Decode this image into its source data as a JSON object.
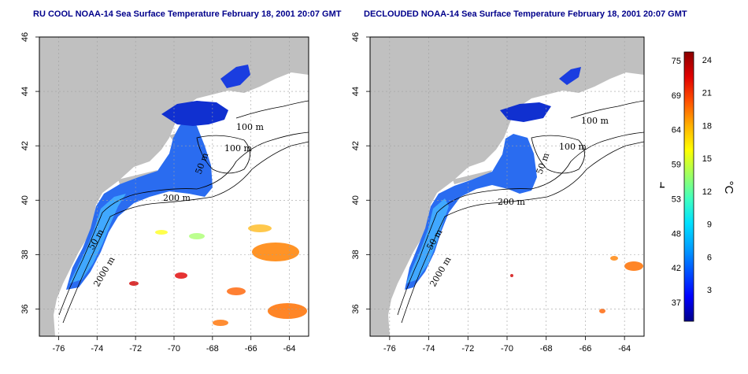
{
  "panels": [
    {
      "title": "RU COOL NOAA-14 Sea Surface Temperature February 18, 2001 20:07 GMT",
      "mode": "full"
    },
    {
      "title": "DECLOUDED NOAA-14 Sea Surface Temperature February 18, 2001 20:07 GMT",
      "mode": "declouded"
    }
  ],
  "axes": {
    "lon_ticks": [
      "-76",
      "-74",
      "-72",
      "-70",
      "-68",
      "-66",
      "-64"
    ],
    "lat_ticks": [
      "36",
      "38",
      "40",
      "42",
      "44",
      "46"
    ]
  },
  "contour_labels": [
    "100 m",
    "100 m",
    "50 m",
    "200 m",
    "50 m",
    "2000 m"
  ],
  "colorbar": {
    "fahrenheit_ticks": [
      "75",
      "69",
      "64",
      "59",
      "53",
      "48",
      "42",
      "37"
    ],
    "celsius_ticks": [
      "24",
      "21",
      "18",
      "15",
      "12",
      "9",
      "6",
      "3"
    ],
    "f_unit": "°F",
    "c_unit": "°C",
    "colors": [
      "#00008b",
      "#0000ff",
      "#0050ff",
      "#00a0ff",
      "#00e0ff",
      "#40ffc0",
      "#a0ff60",
      "#ffff00",
      "#ffb000",
      "#ff5000",
      "#e00000",
      "#8b0000"
    ]
  },
  "colors": {
    "land": "#c0c0c0",
    "grid": "#a0a0a0",
    "title": "#00008b"
  }
}
